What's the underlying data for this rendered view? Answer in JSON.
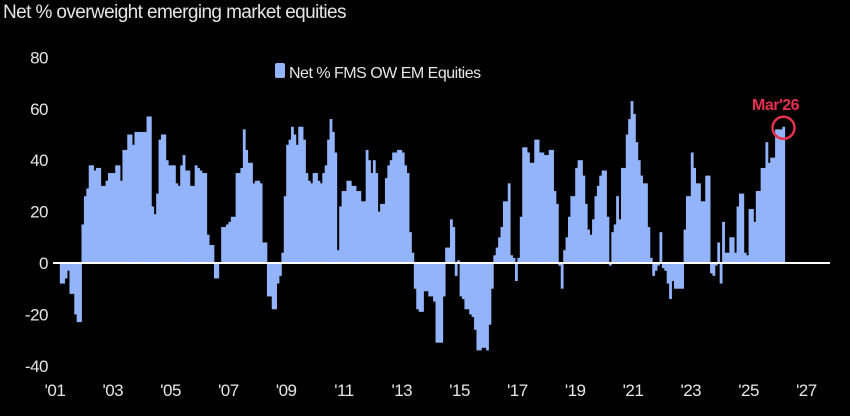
{
  "chart_data": {
    "type": "bar",
    "title": "Net % overweight emerging market equities",
    "xlabel": "",
    "ylabel": "",
    "ylim": [
      -40,
      80
    ],
    "yticks": [
      80,
      60,
      40,
      20,
      0,
      -20,
      -40
    ],
    "xticks": [
      "'01",
      "'03",
      "'05",
      "'07",
      "'09",
      "'11",
      "'13",
      "'15",
      "'17",
      "'19",
      "'21",
      "'23",
      "'25",
      "'27"
    ],
    "xlim_years": [
      2001,
      2027
    ],
    "frequency": "monthly",
    "start": "2001-01",
    "legend": {
      "label": "Net % FMS OW EM Equities",
      "placement": "top-center"
    },
    "annotation": {
      "label": "Mar'26",
      "year": 2026,
      "month": 3,
      "value": 53
    },
    "colors": {
      "bars": "#93b4fa",
      "zero_line": "#ffffff",
      "annotation": "#e8314f",
      "background": "#000000"
    },
    "series": [
      {
        "name": "Net % FMS OW EM Equities",
        "values_by_year": {
          "2001": [
            0,
            0,
            -8,
            -8,
            -6,
            -3,
            -12,
            -12,
            -20,
            -23,
            -23,
            15
          ],
          "2002": [
            26,
            29,
            38,
            38,
            36,
            37,
            37,
            30,
            30,
            32,
            35,
            35
          ],
          "2003": [
            35,
            38,
            38,
            32,
            44,
            44,
            50,
            50,
            46,
            51,
            51,
            51
          ],
          "2004": [
            51,
            51,
            57,
            57,
            22,
            19,
            27,
            48,
            50,
            50,
            40,
            38
          ],
          "2005": [
            38,
            38,
            31,
            30,
            38,
            42,
            36,
            36,
            30,
            30,
            38,
            37
          ],
          "2006": [
            36,
            35,
            35,
            11,
            7,
            7,
            -6,
            -6,
            0,
            14,
            14,
            15
          ],
          "2007": [
            16,
            18,
            18,
            35,
            35,
            37,
            52,
            44,
            39,
            39,
            31,
            32
          ],
          "2008": [
            32,
            31,
            8,
            8,
            -13,
            -13,
            -18,
            -18,
            -8,
            -5,
            4,
            26
          ],
          "2009": [
            46,
            48,
            53,
            50,
            46,
            53,
            53,
            48,
            35,
            32,
            31,
            35
          ],
          "2010": [
            35,
            32,
            31,
            35,
            38,
            48,
            56,
            51,
            43,
            5,
            22,
            28
          ],
          "2011": [
            28,
            32,
            32,
            30,
            30,
            28,
            28,
            24,
            24,
            44,
            40,
            35
          ],
          "2012": [
            40,
            35,
            20,
            23,
            23,
            33,
            38,
            40,
            43,
            43,
            44,
            44
          ],
          "2013": [
            43,
            38,
            35,
            12,
            4,
            -10,
            -18,
            -19,
            -19,
            -11,
            -11,
            -13
          ],
          "2014": [
            -13,
            -15,
            -31,
            -31,
            -31,
            -13,
            6,
            6,
            17,
            14,
            -5,
            1
          ],
          "2015": [
            -13,
            -14,
            -18,
            -18,
            -20,
            -21,
            -26,
            -34,
            -34,
            -33,
            -33,
            -34
          ],
          "2016": [
            -24,
            -10,
            3,
            6,
            10,
            14,
            24,
            24,
            31,
            3,
            2,
            -7
          ],
          "2017": [
            2,
            18,
            45,
            45,
            43,
            39,
            39,
            48,
            48,
            43,
            43,
            42
          ],
          "2018": [
            42,
            44,
            44,
            28,
            23,
            -1,
            -10,
            5,
            10,
            18,
            26,
            26
          ],
          "2019": [
            37,
            40,
            40,
            34,
            23,
            13,
            11,
            17,
            26,
            30,
            34,
            36
          ],
          "2020": [
            36,
            18,
            -1,
            12,
            15,
            26,
            17,
            37,
            37,
            50,
            56,
            63
          ],
          "2021": [
            58,
            47,
            40,
            34,
            31,
            31,
            14,
            2,
            -5,
            -3,
            -1,
            12
          ],
          "2022": [
            -2,
            -3,
            -8,
            -14,
            -7,
            -10,
            -10,
            -10,
            -10,
            13,
            26,
            26
          ],
          "2023": [
            43,
            37,
            31,
            31,
            24,
            24,
            34,
            34,
            -4,
            -5,
            -1,
            8
          ],
          "2024": [
            -8,
            16,
            4,
            4,
            10,
            10,
            4,
            22,
            27,
            27,
            4,
            3
          ],
          "2025": [
            21,
            21,
            16,
            28,
            28,
            37,
            37,
            47,
            39,
            41,
            41,
            52
          ],
          "2026": [
            52,
            52,
            53
          ]
        }
      }
    ]
  }
}
